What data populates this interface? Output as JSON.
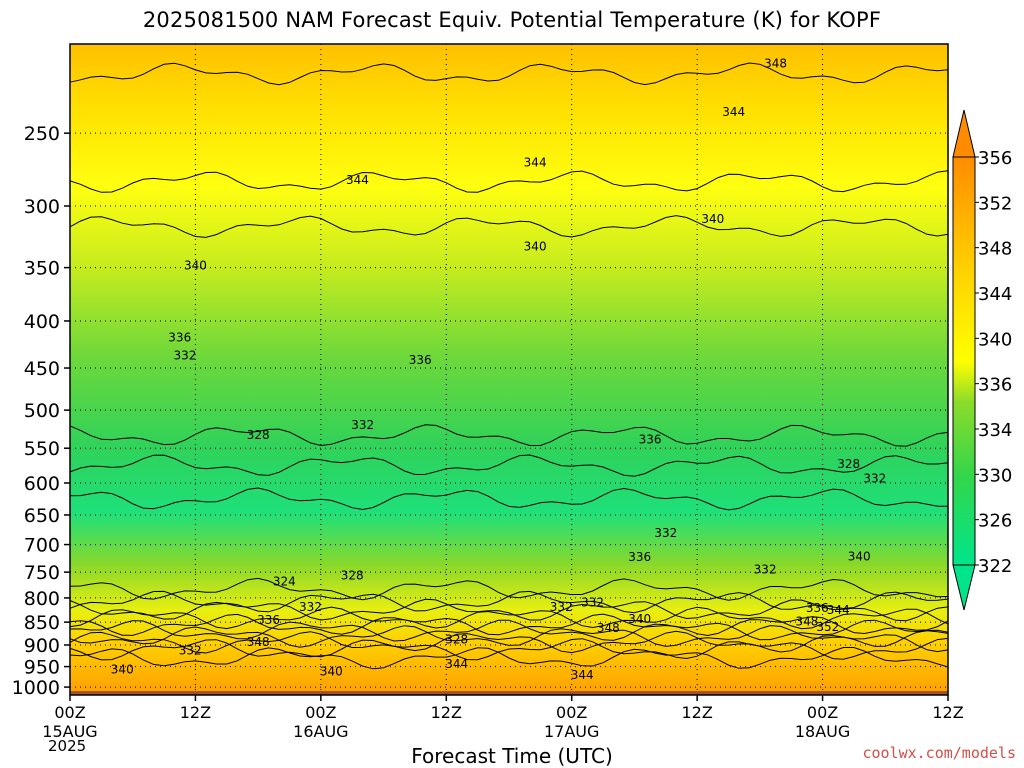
{
  "title": "2025081500 NAM Forecast Equiv. Potential Temperature (K) for KOPF",
  "watermark": "coolwx.com/models",
  "colors": {
    "low": "#00e58a",
    "mid_green": "#4bd23c",
    "yellow_green": "#c8ec1e",
    "yellow": "#ffff00",
    "gold": "#ffd200",
    "orange": "#ff9a00",
    "ground": "#a0522d"
  },
  "chart_data": {
    "type": "heatmap",
    "title": "2025081500 NAM Forecast Equiv. Potential Temperature (K) for KOPF",
    "xlabel": "Forecast Time (UTC)",
    "ylabel": "",
    "x_ticks": [
      {
        "hour": 0,
        "label": "00Z",
        "date": "15AUG",
        "year": "2025"
      },
      {
        "hour": 12,
        "label": "12Z",
        "date": "",
        "year": ""
      },
      {
        "hour": 24,
        "label": "00Z",
        "date": "16AUG",
        "year": ""
      },
      {
        "hour": 36,
        "label": "12Z",
        "date": "",
        "year": ""
      },
      {
        "hour": 48,
        "label": "00Z",
        "date": "17AUG",
        "year": ""
      },
      {
        "hour": 60,
        "label": "12Z",
        "date": "",
        "year": ""
      },
      {
        "hour": 72,
        "label": "00Z",
        "date": "18AUG",
        "year": ""
      },
      {
        "hour": 84,
        "label": "12Z",
        "date": "",
        "year": ""
      }
    ],
    "xlim": [
      0,
      84
    ],
    "y_ticks": [
      250,
      300,
      350,
      400,
      450,
      500,
      550,
      600,
      650,
      700,
      750,
      800,
      850,
      900,
      950,
      1000
    ],
    "ylim": [
      1020,
      200
    ],
    "y_scale": "log",
    "grid": true,
    "colorbar": {
      "levels": [
        322,
        326,
        330,
        334,
        336,
        340,
        344,
        348,
        352,
        356
      ],
      "colors": [
        "#00e58a",
        "#2bdc55",
        "#4bd23c",
        "#8cdc2a",
        "#c8ec1e",
        "#ffff00",
        "#ffe600",
        "#ffd200",
        "#ffb400",
        "#ff9a00"
      ]
    },
    "profile": {
      "pressure": [
        200,
        250,
        300,
        350,
        400,
        450,
        500,
        550,
        600,
        650,
        700,
        750,
        800,
        850,
        900,
        950,
        1000
      ],
      "theta_e": [
        349,
        346,
        343,
        340,
        338,
        336,
        334,
        331,
        329,
        327,
        326,
        326,
        329,
        335,
        343,
        348,
        350
      ]
    },
    "contour_labels": [
      {
        "text": "348",
        "hour": 67.5,
        "p": 210
      },
      {
        "text": "344",
        "hour": 63.5,
        "p": 237
      },
      {
        "text": "344",
        "hour": 27.5,
        "p": 281
      },
      {
        "text": "344",
        "hour": 44.5,
        "p": 269
      },
      {
        "text": "340",
        "hour": 61.5,
        "p": 310
      },
      {
        "text": "340",
        "hour": 44.5,
        "p": 332
      },
      {
        "text": "340",
        "hour": 12,
        "p": 348
      },
      {
        "text": "336",
        "hour": 10.5,
        "p": 417
      },
      {
        "text": "332",
        "hour": 11,
        "p": 436
      },
      {
        "text": "336",
        "hour": 33.5,
        "p": 441
      },
      {
        "text": "332",
        "hour": 28,
        "p": 519
      },
      {
        "text": "328",
        "hour": 18,
        "p": 532
      },
      {
        "text": "336",
        "hour": 55.5,
        "p": 538
      },
      {
        "text": "328",
        "hour": 74.5,
        "p": 572
      },
      {
        "text": "332",
        "hour": 77,
        "p": 593
      },
      {
        "text": "332",
        "hour": 57,
        "p": 680
      },
      {
        "text": "336",
        "hour": 54.5,
        "p": 722
      },
      {
        "text": "340",
        "hour": 75.5,
        "p": 721
      },
      {
        "text": "328",
        "hour": 27,
        "p": 756
      },
      {
        "text": "332",
        "hour": 66.5,
        "p": 745
      },
      {
        "text": "324",
        "hour": 20.5,
        "p": 768
      },
      {
        "text": "332",
        "hour": 23,
        "p": 818
      },
      {
        "text": "332",
        "hour": 47,
        "p": 818
      },
      {
        "text": "332",
        "hour": 50,
        "p": 809
      },
      {
        "text": "336",
        "hour": 71.5,
        "p": 820
      },
      {
        "text": "344",
        "hour": 73.5,
        "p": 825
      },
      {
        "text": "336",
        "hour": 19,
        "p": 845
      },
      {
        "text": "340",
        "hour": 54.5,
        "p": 843
      },
      {
        "text": "348",
        "hour": 51.5,
        "p": 863
      },
      {
        "text": "348",
        "hour": 70.5,
        "p": 849
      },
      {
        "text": "352",
        "hour": 72.5,
        "p": 860
      },
      {
        "text": "328",
        "hour": 37,
        "p": 888
      },
      {
        "text": "348",
        "hour": 18,
        "p": 893
      },
      {
        "text": "332",
        "hour": 11.5,
        "p": 913
      },
      {
        "text": "344",
        "hour": 37,
        "p": 944
      },
      {
        "text": "340",
        "hour": 5,
        "p": 957
      },
      {
        "text": "340",
        "hour": 25,
        "p": 962
      },
      {
        "text": "344",
        "hour": 49,
        "p": 970
      }
    ]
  }
}
